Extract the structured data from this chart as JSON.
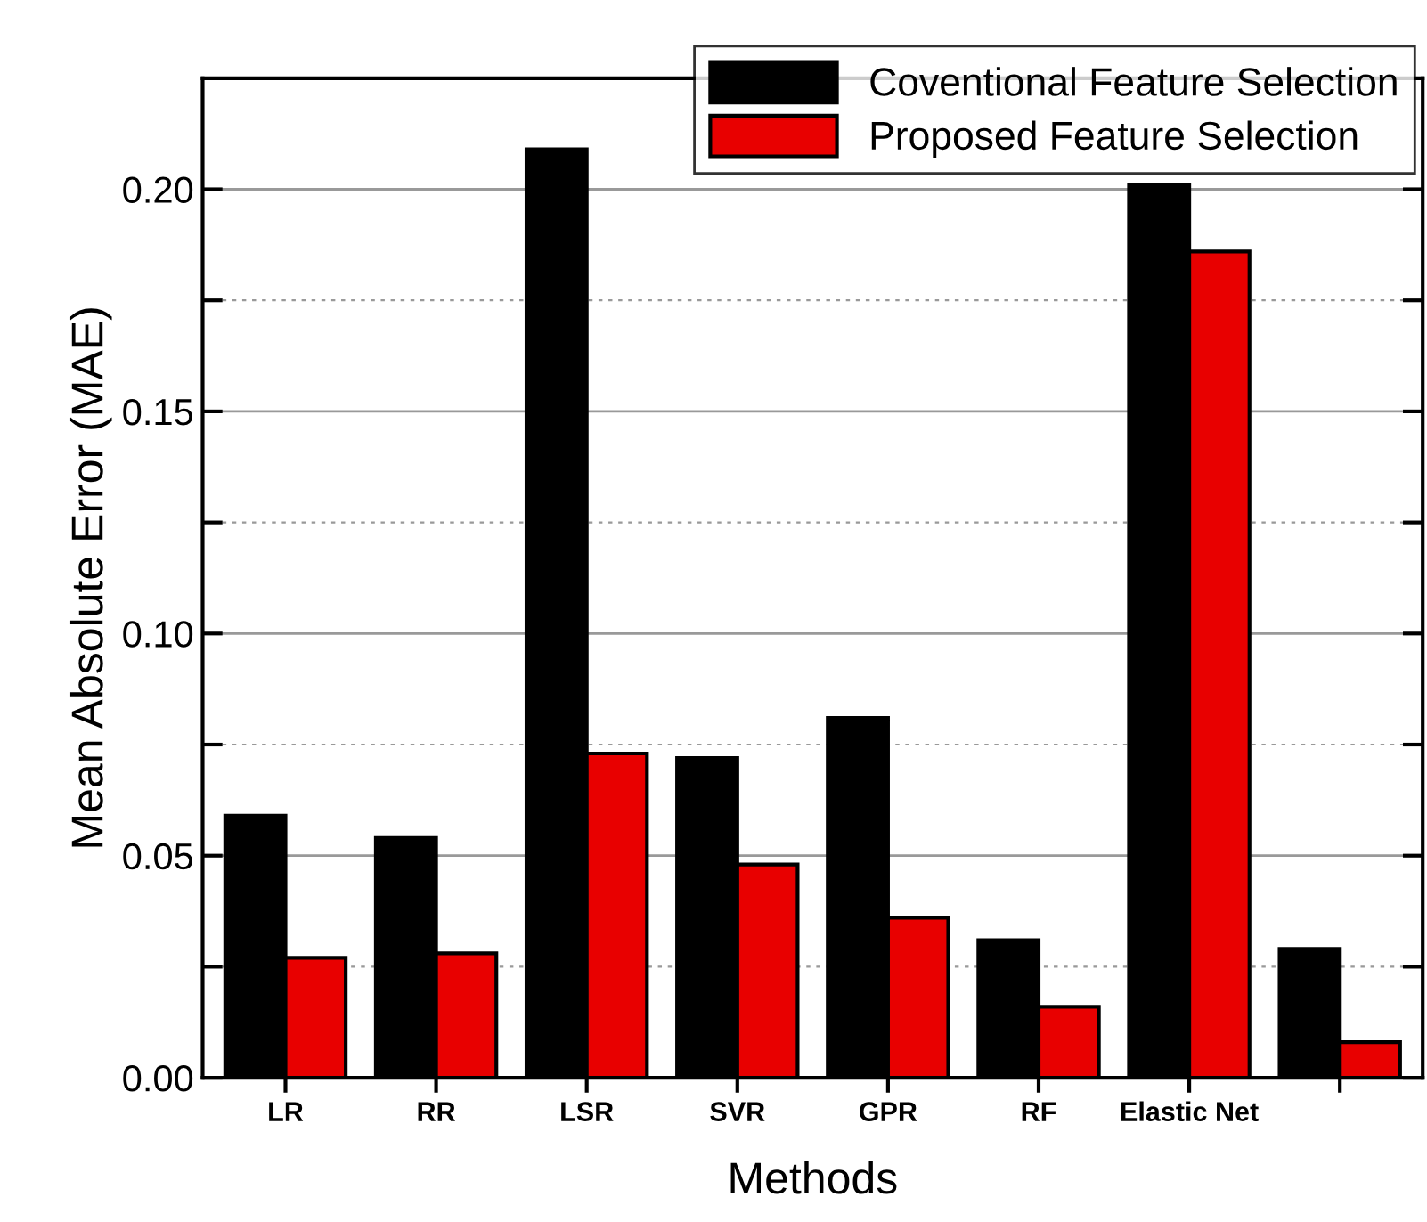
{
  "chart_data": {
    "type": "bar",
    "xlabel": "Methods",
    "ylabel": "Mean Absolute Error (MAE)",
    "categories": [
      "LR",
      "RR",
      "LSR",
      "SVR",
      "GPR",
      "RF",
      "Elastic Net",
      null
    ],
    "series": [
      {
        "name": "Coventional Feature Selection",
        "color": "#000000",
        "values": [
          0.059,
          0.054,
          0.209,
          0.072,
          0.081,
          0.031,
          0.201,
          0.029
        ]
      },
      {
        "name": "Proposed Feature Selection",
        "color": "#e80000",
        "values": [
          0.027,
          0.028,
          0.073,
          0.048,
          0.036,
          0.016,
          0.186,
          0.008
        ]
      }
    ],
    "ylim": [
      0,
      0.225
    ],
    "yticks": [
      {
        "value": 0,
        "label": "0.00"
      },
      {
        "value": 0.025,
        "label": null
      },
      {
        "value": 0.05,
        "label": "0.05"
      },
      {
        "value": 0.075,
        "label": null
      },
      {
        "value": 0.1,
        "label": "0.10"
      },
      {
        "value": 0.125,
        "label": null
      },
      {
        "value": 0.15,
        "label": "0.15"
      },
      {
        "value": 0.175,
        "label": null
      },
      {
        "value": 0.2,
        "label": "0.20"
      }
    ],
    "grid": "y",
    "legend": "top right"
  }
}
